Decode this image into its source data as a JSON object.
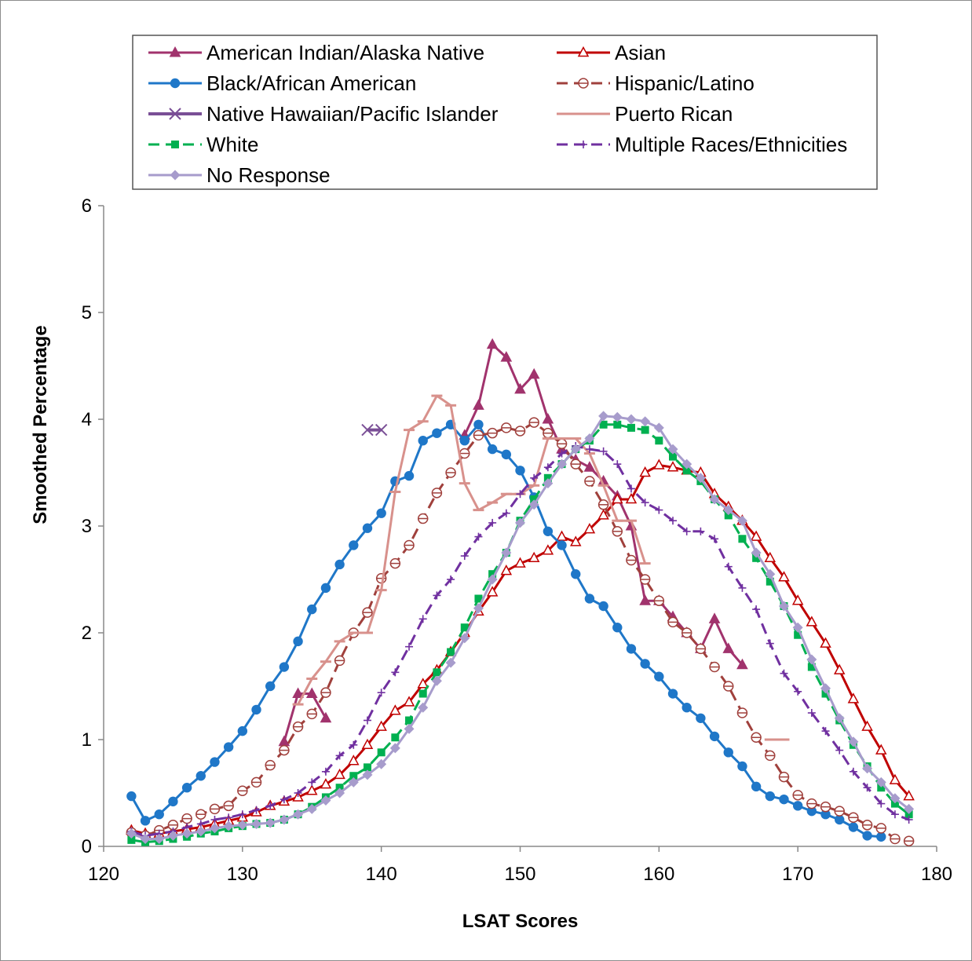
{
  "chart_data": {
    "type": "line",
    "xlabel": "LSAT Scores",
    "ylabel": "Smoothed Percentage",
    "xlim": [
      120,
      180
    ],
    "ylim": [
      0,
      6
    ],
    "x_ticks": [
      120,
      130,
      140,
      150,
      160,
      170,
      180
    ],
    "y_ticks": [
      0,
      1,
      2,
      3,
      4,
      5,
      6
    ],
    "grid": false,
    "legend_placement": "top",
    "series": [
      {
        "name": "American Indian/Alaska Native",
        "color": "#a1336d",
        "dash": "",
        "marker": "triangle-filled",
        "x": [
          133,
          134,
          135,
          136,
          137,
          138,
          139,
          140,
          141,
          142,
          143,
          144,
          145,
          146,
          147,
          148,
          149,
          150,
          151,
          152,
          153,
          154,
          155,
          156,
          157,
          158,
          159,
          160,
          161,
          162,
          163,
          164,
          165,
          166
        ],
        "y": [
          0.98,
          1.43,
          1.43,
          1.2,
          null,
          null,
          null,
          null,
          null,
          null,
          null,
          null,
          null,
          3.85,
          4.13,
          4.7,
          4.58,
          4.28,
          4.42,
          4.0,
          3.72,
          3.62,
          3.55,
          3.42,
          3.28,
          3.0,
          2.3,
          2.3,
          2.15,
          2.0,
          1.85,
          2.13,
          1.85,
          1.7
        ]
      },
      {
        "name": "Asian",
        "color": "#c00000",
        "dash": "",
        "marker": "triangle-open",
        "x": [
          122,
          123,
          124,
          125,
          126,
          127,
          128,
          129,
          130,
          131,
          132,
          133,
          134,
          135,
          136,
          137,
          138,
          139,
          140,
          141,
          142,
          143,
          144,
          145,
          146,
          147,
          148,
          149,
          150,
          151,
          152,
          153,
          154,
          155,
          156,
          157,
          158,
          159,
          160,
          161,
          162,
          163,
          164,
          165,
          166,
          167,
          168,
          169,
          170,
          171,
          172,
          173,
          174,
          175,
          176,
          177,
          178
        ],
        "y": [
          0.15,
          0.12,
          0.12,
          0.14,
          0.16,
          0.18,
          0.21,
          0.24,
          0.27,
          0.32,
          0.38,
          0.42,
          0.46,
          0.52,
          0.58,
          0.67,
          0.8,
          0.95,
          1.12,
          1.27,
          1.35,
          1.52,
          1.65,
          1.82,
          2.0,
          2.2,
          2.38,
          2.58,
          2.65,
          2.7,
          2.77,
          2.9,
          2.85,
          2.97,
          3.1,
          3.25,
          3.25,
          3.5,
          3.57,
          3.55,
          3.52,
          3.5,
          3.3,
          3.18,
          3.05,
          2.9,
          2.7,
          2.52,
          2.3,
          2.1,
          1.9,
          1.65,
          1.38,
          1.12,
          0.9,
          0.62,
          0.47
        ]
      },
      {
        "name": "Black/African American",
        "color": "#1f77c8",
        "dash": "",
        "marker": "circle-filled",
        "x": [
          122,
          123,
          124,
          125,
          126,
          127,
          128,
          129,
          130,
          131,
          132,
          133,
          134,
          135,
          136,
          137,
          138,
          139,
          140,
          141,
          142,
          143,
          144,
          145,
          146,
          147,
          148,
          149,
          150,
          151,
          152,
          153,
          154,
          155,
          156,
          157,
          158,
          159,
          160,
          161,
          162,
          163,
          164,
          165,
          166,
          167,
          168,
          169,
          170,
          171,
          172,
          173,
          174,
          175,
          176
        ],
        "y": [
          0.47,
          0.24,
          0.3,
          0.42,
          0.55,
          0.66,
          0.79,
          0.93,
          1.08,
          1.28,
          1.5,
          1.68,
          1.92,
          2.22,
          2.42,
          2.64,
          2.82,
          2.98,
          3.12,
          3.42,
          3.47,
          3.8,
          3.87,
          3.95,
          3.8,
          3.95,
          3.72,
          3.67,
          3.52,
          3.27,
          2.95,
          2.82,
          2.55,
          2.32,
          2.25,
          2.05,
          1.85,
          1.71,
          1.59,
          1.43,
          1.3,
          1.2,
          1.03,
          0.88,
          0.75,
          0.56,
          0.47,
          0.44,
          0.38,
          0.33,
          0.3,
          0.25,
          0.18,
          0.1,
          0.09
        ]
      },
      {
        "name": "Hispanic/Latino",
        "color": "#a0403c",
        "dash": "14 8",
        "marker": "circle-open-slash",
        "x": [
          122,
          123,
          124,
          125,
          126,
          127,
          128,
          129,
          130,
          131,
          132,
          133,
          134,
          135,
          136,
          137,
          138,
          139,
          140,
          141,
          142,
          143,
          144,
          145,
          146,
          147,
          148,
          149,
          150,
          151,
          152,
          153,
          154,
          155,
          156,
          157,
          158,
          159,
          160,
          161,
          162,
          163,
          164,
          165,
          166,
          167,
          168,
          169,
          170,
          171,
          172,
          173,
          174,
          175,
          176,
          177,
          178
        ],
        "y": [
          0.13,
          0.1,
          0.15,
          0.2,
          0.26,
          0.3,
          0.35,
          0.38,
          0.52,
          0.6,
          0.76,
          0.9,
          1.12,
          1.24,
          1.44,
          1.74,
          2.0,
          2.19,
          2.51,
          2.65,
          2.82,
          3.07,
          3.31,
          3.5,
          3.68,
          3.85,
          3.87,
          3.92,
          3.89,
          3.97,
          3.87,
          3.77,
          3.58,
          3.42,
          3.2,
          2.95,
          2.68,
          2.5,
          2.3,
          2.1,
          2.0,
          1.85,
          1.68,
          1.5,
          1.25,
          1.02,
          0.85,
          0.65,
          0.48,
          0.4,
          0.37,
          0.33,
          0.27,
          0.2,
          0.17,
          0.07,
          0.05
        ]
      },
      {
        "name": "Native Hawaiian/Pacific Islander",
        "color": "#7a4f96",
        "dash": "",
        "marker": "x",
        "x": [
          139,
          140
        ],
        "y": [
          3.9,
          3.9
        ]
      },
      {
        "name": "Puerto Rican",
        "color": "#d8918c",
        "dash": "",
        "marker": "dash",
        "x": [
          134,
          135,
          136,
          137,
          138,
          139,
          140,
          141,
          142,
          143,
          144,
          145,
          146,
          147,
          148,
          149,
          150,
          151,
          152,
          153,
          154,
          155,
          156,
          157,
          158,
          159,
          160,
          161,
          162,
          163,
          164,
          165,
          166,
          167,
          168,
          169
        ],
        "y": [
          1.33,
          1.57,
          1.73,
          1.92,
          2.0,
          2.0,
          2.4,
          3.32,
          3.9,
          3.98,
          4.22,
          4.13,
          3.4,
          3.15,
          3.22,
          3.3,
          3.3,
          3.38,
          3.82,
          3.82,
          3.82,
          3.68,
          3.38,
          3.05,
          3.05,
          2.65,
          null,
          null,
          null,
          null,
          null,
          null,
          null,
          null,
          1.0,
          1.0
        ]
      },
      {
        "name": "White",
        "color": "#00b050",
        "dash": "14 8",
        "marker": "square-filled",
        "x": [
          122,
          123,
          124,
          125,
          126,
          127,
          128,
          129,
          130,
          131,
          132,
          133,
          134,
          135,
          136,
          137,
          138,
          139,
          140,
          141,
          142,
          143,
          144,
          145,
          146,
          147,
          148,
          149,
          150,
          151,
          152,
          153,
          154,
          155,
          156,
          157,
          158,
          159,
          160,
          161,
          162,
          163,
          164,
          165,
          166,
          167,
          168,
          169,
          170,
          171,
          172,
          173,
          174,
          175,
          176,
          177,
          178
        ],
        "y": [
          0.06,
          0.04,
          0.05,
          0.07,
          0.09,
          0.12,
          0.14,
          0.17,
          0.19,
          0.21,
          0.22,
          0.25,
          0.3,
          0.37,
          0.46,
          0.55,
          0.66,
          0.74,
          0.88,
          1.02,
          1.18,
          1.43,
          1.63,
          1.82,
          2.05,
          2.32,
          2.55,
          2.75,
          3.05,
          3.25,
          3.45,
          3.58,
          3.72,
          3.8,
          3.95,
          3.95,
          3.92,
          3.9,
          3.8,
          3.65,
          3.52,
          3.42,
          3.25,
          3.1,
          2.88,
          2.7,
          2.48,
          2.25,
          1.98,
          1.68,
          1.43,
          1.18,
          0.95,
          0.75,
          0.55,
          0.4,
          0.3
        ]
      },
      {
        "name": "Multiple Races/Ethnicities",
        "color": "#7030a0",
        "dash": "14 8",
        "marker": "plus",
        "x": [
          122,
          123,
          124,
          125,
          126,
          127,
          128,
          129,
          130,
          131,
          132,
          133,
          134,
          135,
          136,
          137,
          138,
          139,
          140,
          141,
          142,
          143,
          144,
          145,
          146,
          147,
          148,
          149,
          150,
          151,
          152,
          153,
          154,
          155,
          156,
          157,
          158,
          159,
          160,
          161,
          162,
          163,
          164,
          165,
          166,
          167,
          168,
          169,
          170,
          171,
          172,
          173,
          174,
          175,
          176,
          177,
          178
        ],
        "y": [
          0.14,
          0.1,
          0.12,
          0.14,
          0.18,
          0.21,
          0.25,
          0.27,
          0.3,
          0.34,
          0.38,
          0.44,
          0.5,
          0.6,
          0.7,
          0.85,
          0.95,
          1.18,
          1.44,
          1.63,
          1.87,
          2.13,
          2.35,
          2.5,
          2.72,
          2.9,
          3.03,
          3.12,
          3.3,
          3.45,
          3.55,
          3.68,
          3.75,
          3.72,
          3.7,
          3.58,
          3.35,
          3.22,
          3.15,
          3.05,
          2.95,
          2.95,
          2.88,
          2.62,
          2.42,
          2.22,
          1.9,
          1.62,
          1.45,
          1.25,
          1.08,
          0.9,
          0.7,
          0.55,
          0.4,
          0.3,
          0.25
        ]
      },
      {
        "name": "No Response",
        "color": "#a79ccc",
        "dash": "",
        "marker": "diamond-filled",
        "x": [
          122,
          123,
          124,
          125,
          126,
          127,
          128,
          129,
          130,
          131,
          132,
          133,
          134,
          135,
          136,
          137,
          138,
          139,
          140,
          141,
          142,
          143,
          144,
          145,
          146,
          147,
          148,
          149,
          150,
          151,
          152,
          153,
          154,
          155,
          156,
          157,
          158,
          159,
          160,
          161,
          162,
          163,
          164,
          165,
          166,
          167,
          168,
          169,
          170,
          171,
          172,
          173,
          174,
          175,
          176,
          177,
          178
        ],
        "y": [
          0.12,
          0.07,
          0.07,
          0.1,
          0.12,
          0.14,
          0.17,
          0.19,
          0.2,
          0.21,
          0.22,
          0.25,
          0.3,
          0.35,
          0.43,
          0.5,
          0.6,
          0.67,
          0.77,
          0.92,
          1.1,
          1.3,
          1.55,
          1.72,
          1.95,
          2.23,
          2.5,
          2.75,
          3.03,
          3.2,
          3.4,
          3.58,
          3.72,
          3.82,
          4.03,
          4.02,
          4.0,
          3.98,
          3.92,
          3.72,
          3.58,
          3.45,
          3.25,
          3.15,
          3.05,
          2.75,
          2.55,
          2.25,
          2.05,
          1.75,
          1.48,
          1.2,
          0.98,
          0.73,
          0.6,
          0.45,
          0.35
        ]
      }
    ]
  }
}
